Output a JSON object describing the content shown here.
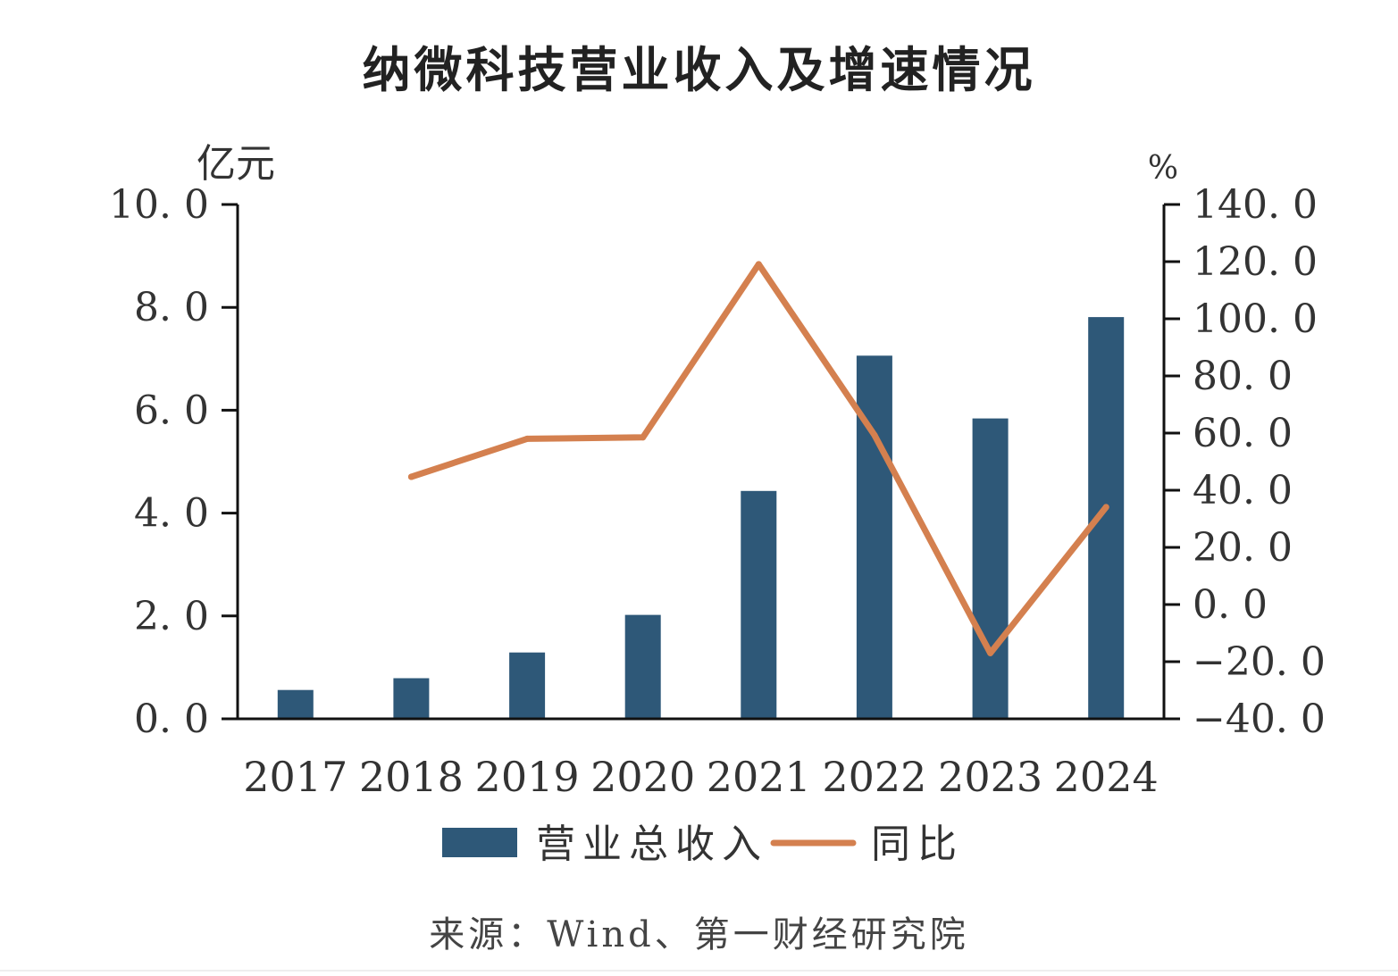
{
  "chart_data": {
    "type": "bar",
    "title": "纳微科技营业收入及增速情况",
    "categories": [
      "2017",
      "2018",
      "2019",
      "2020",
      "2021",
      "2022",
      "2023",
      "2024"
    ],
    "series": [
      {
        "name": "营业总收入",
        "type": "bar",
        "axis": "left",
        "color": "#2e5878",
        "values": [
          0.56,
          0.79,
          1.29,
          2.02,
          4.43,
          7.06,
          5.84,
          7.81
        ]
      },
      {
        "name": "同比",
        "type": "line",
        "axis": "right",
        "color": "#d4804f",
        "values": [
          null,
          44.7,
          58.0,
          58.5,
          119.1,
          59.3,
          -17.0,
          34.1
        ]
      }
    ],
    "y_left": {
      "unit": "亿元",
      "ylim": [
        0,
        10
      ],
      "ticks": [
        0,
        2,
        4,
        6,
        8,
        10
      ],
      "tick_labels": [
        "0. 0",
        "2. 0",
        "4. 0",
        "6. 0",
        "8. 0",
        "10. 0"
      ]
    },
    "y_right": {
      "unit": "%",
      "ylim": [
        -40,
        140
      ],
      "ticks": [
        -40,
        -20,
        0,
        20,
        40,
        60,
        80,
        100,
        120,
        140
      ],
      "tick_labels": [
        "−40. 0",
        "−20. 0",
        "0. 0",
        "20. 0",
        "40. 0",
        "60. 0",
        "80. 0",
        "100. 0",
        "120. 0",
        "140. 0"
      ]
    },
    "grid": false,
    "legend_position": "bottom",
    "source": "来源：Wind、第一财经研究院"
  }
}
